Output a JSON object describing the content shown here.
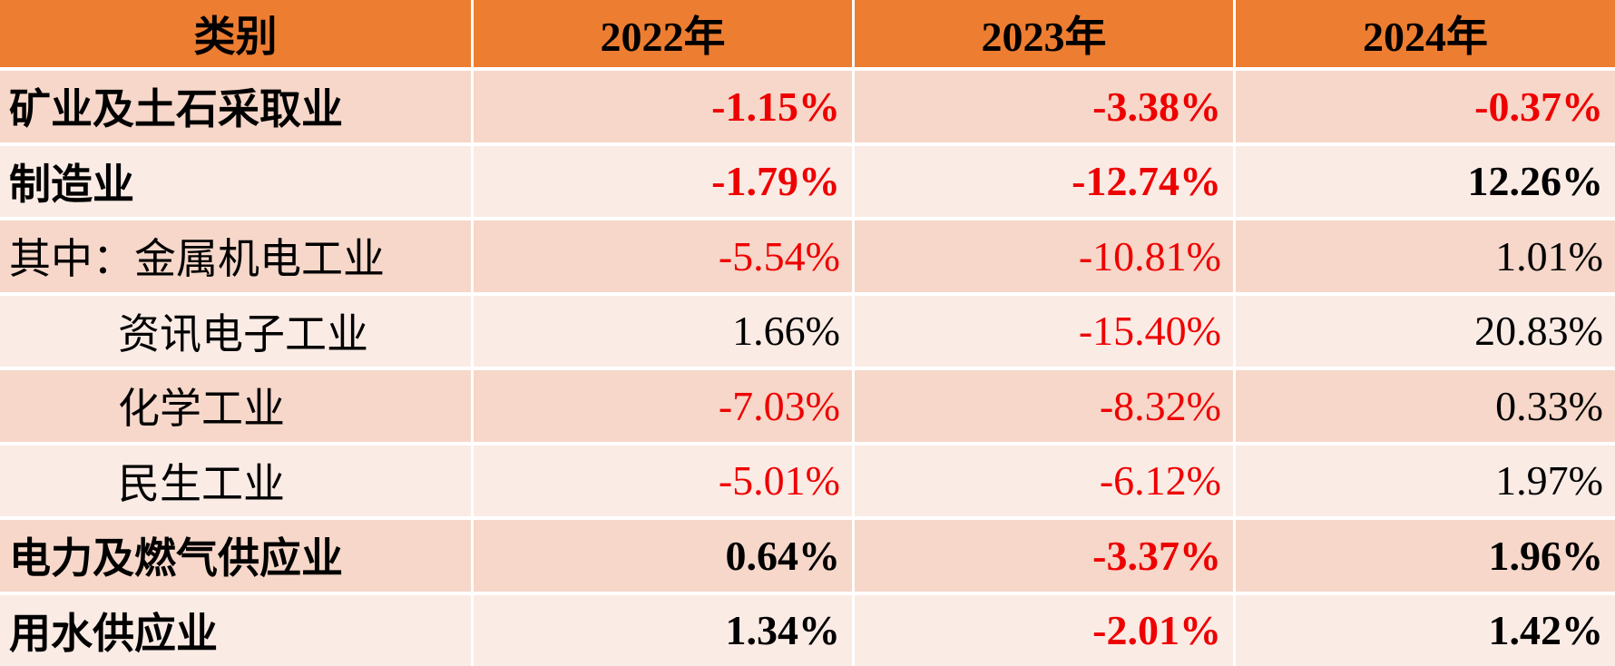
{
  "chart_data": {
    "type": "table",
    "title": "",
    "columns": [
      "类别",
      "2022年",
      "2023年",
      "2024年"
    ],
    "rows": [
      [
        "矿业及土石采取业",
        "-1.15%",
        "-3.38%",
        "-0.37%"
      ],
      [
        "制造业",
        "-1.79%",
        "-12.74%",
        "12.26%"
      ],
      [
        "其中：金属机电工业",
        "-5.54%",
        "-10.81%",
        "1.01%"
      ],
      [
        "资讯电子工业",
        "1.66%",
        "-15.40%",
        "20.83%"
      ],
      [
        "化学工业",
        "-7.03%",
        "-8.32%",
        "0.33%"
      ],
      [
        "民生工业",
        "-5.01%",
        "-6.12%",
        "1.97%"
      ],
      [
        "电力及燃气供应业",
        "0.64%",
        "-3.37%",
        "1.96%"
      ],
      [
        "用水供应业",
        "1.34%",
        "-2.01%",
        "1.42%"
      ]
    ],
    "legend_position": "none",
    "grid": "white cell separators"
  },
  "colors": {
    "header_bg": "#ED7D31",
    "row_odd_bg": "#F6D7C9",
    "row_even_bg": "#FBEBE5",
    "negative": "#EE0000",
    "text": "#000000",
    "separator": "#FFFFFF"
  }
}
